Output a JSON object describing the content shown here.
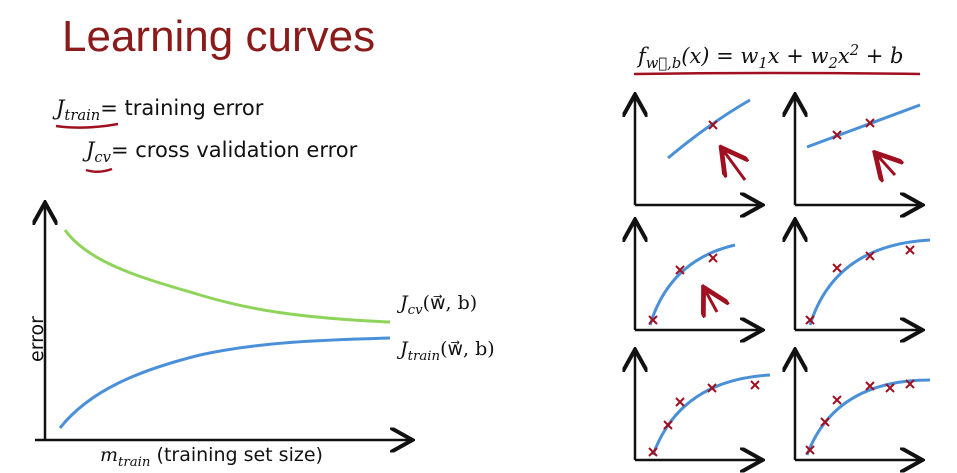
{
  "title": "Learning curves",
  "definitions": [
    {
      "symbol": "J",
      "subscript": "train",
      "text": "= training error"
    },
    {
      "symbol": "J",
      "subscript": "cv",
      "text": "= cross validation error"
    }
  ],
  "plot": {
    "y_label": "error",
    "x_label": {
      "symbol": "m",
      "subscript": "train",
      "text": "(training set size)"
    },
    "curves": [
      {
        "symbol": "J",
        "subscript": "cv",
        "text": "(w⃗, b)"
      },
      {
        "symbol": "J",
        "subscript": "train",
        "text": "(w⃗, b)"
      }
    ]
  },
  "formula": [
    {
      "text": "f",
      "position": "base"
    },
    {
      "text": "w⃗,b",
      "position": "sub"
    },
    {
      "text": "(x) = w",
      "position": "base"
    },
    {
      "text": "1",
      "position": "sub"
    },
    {
      "text": "x + w",
      "position": "base"
    },
    {
      "text": "2",
      "position": "sub"
    },
    {
      "text": "x",
      "position": "base"
    },
    {
      "text": "2",
      "position": "sup"
    },
    {
      "text": " + b",
      "position": "base"
    }
  ]
}
